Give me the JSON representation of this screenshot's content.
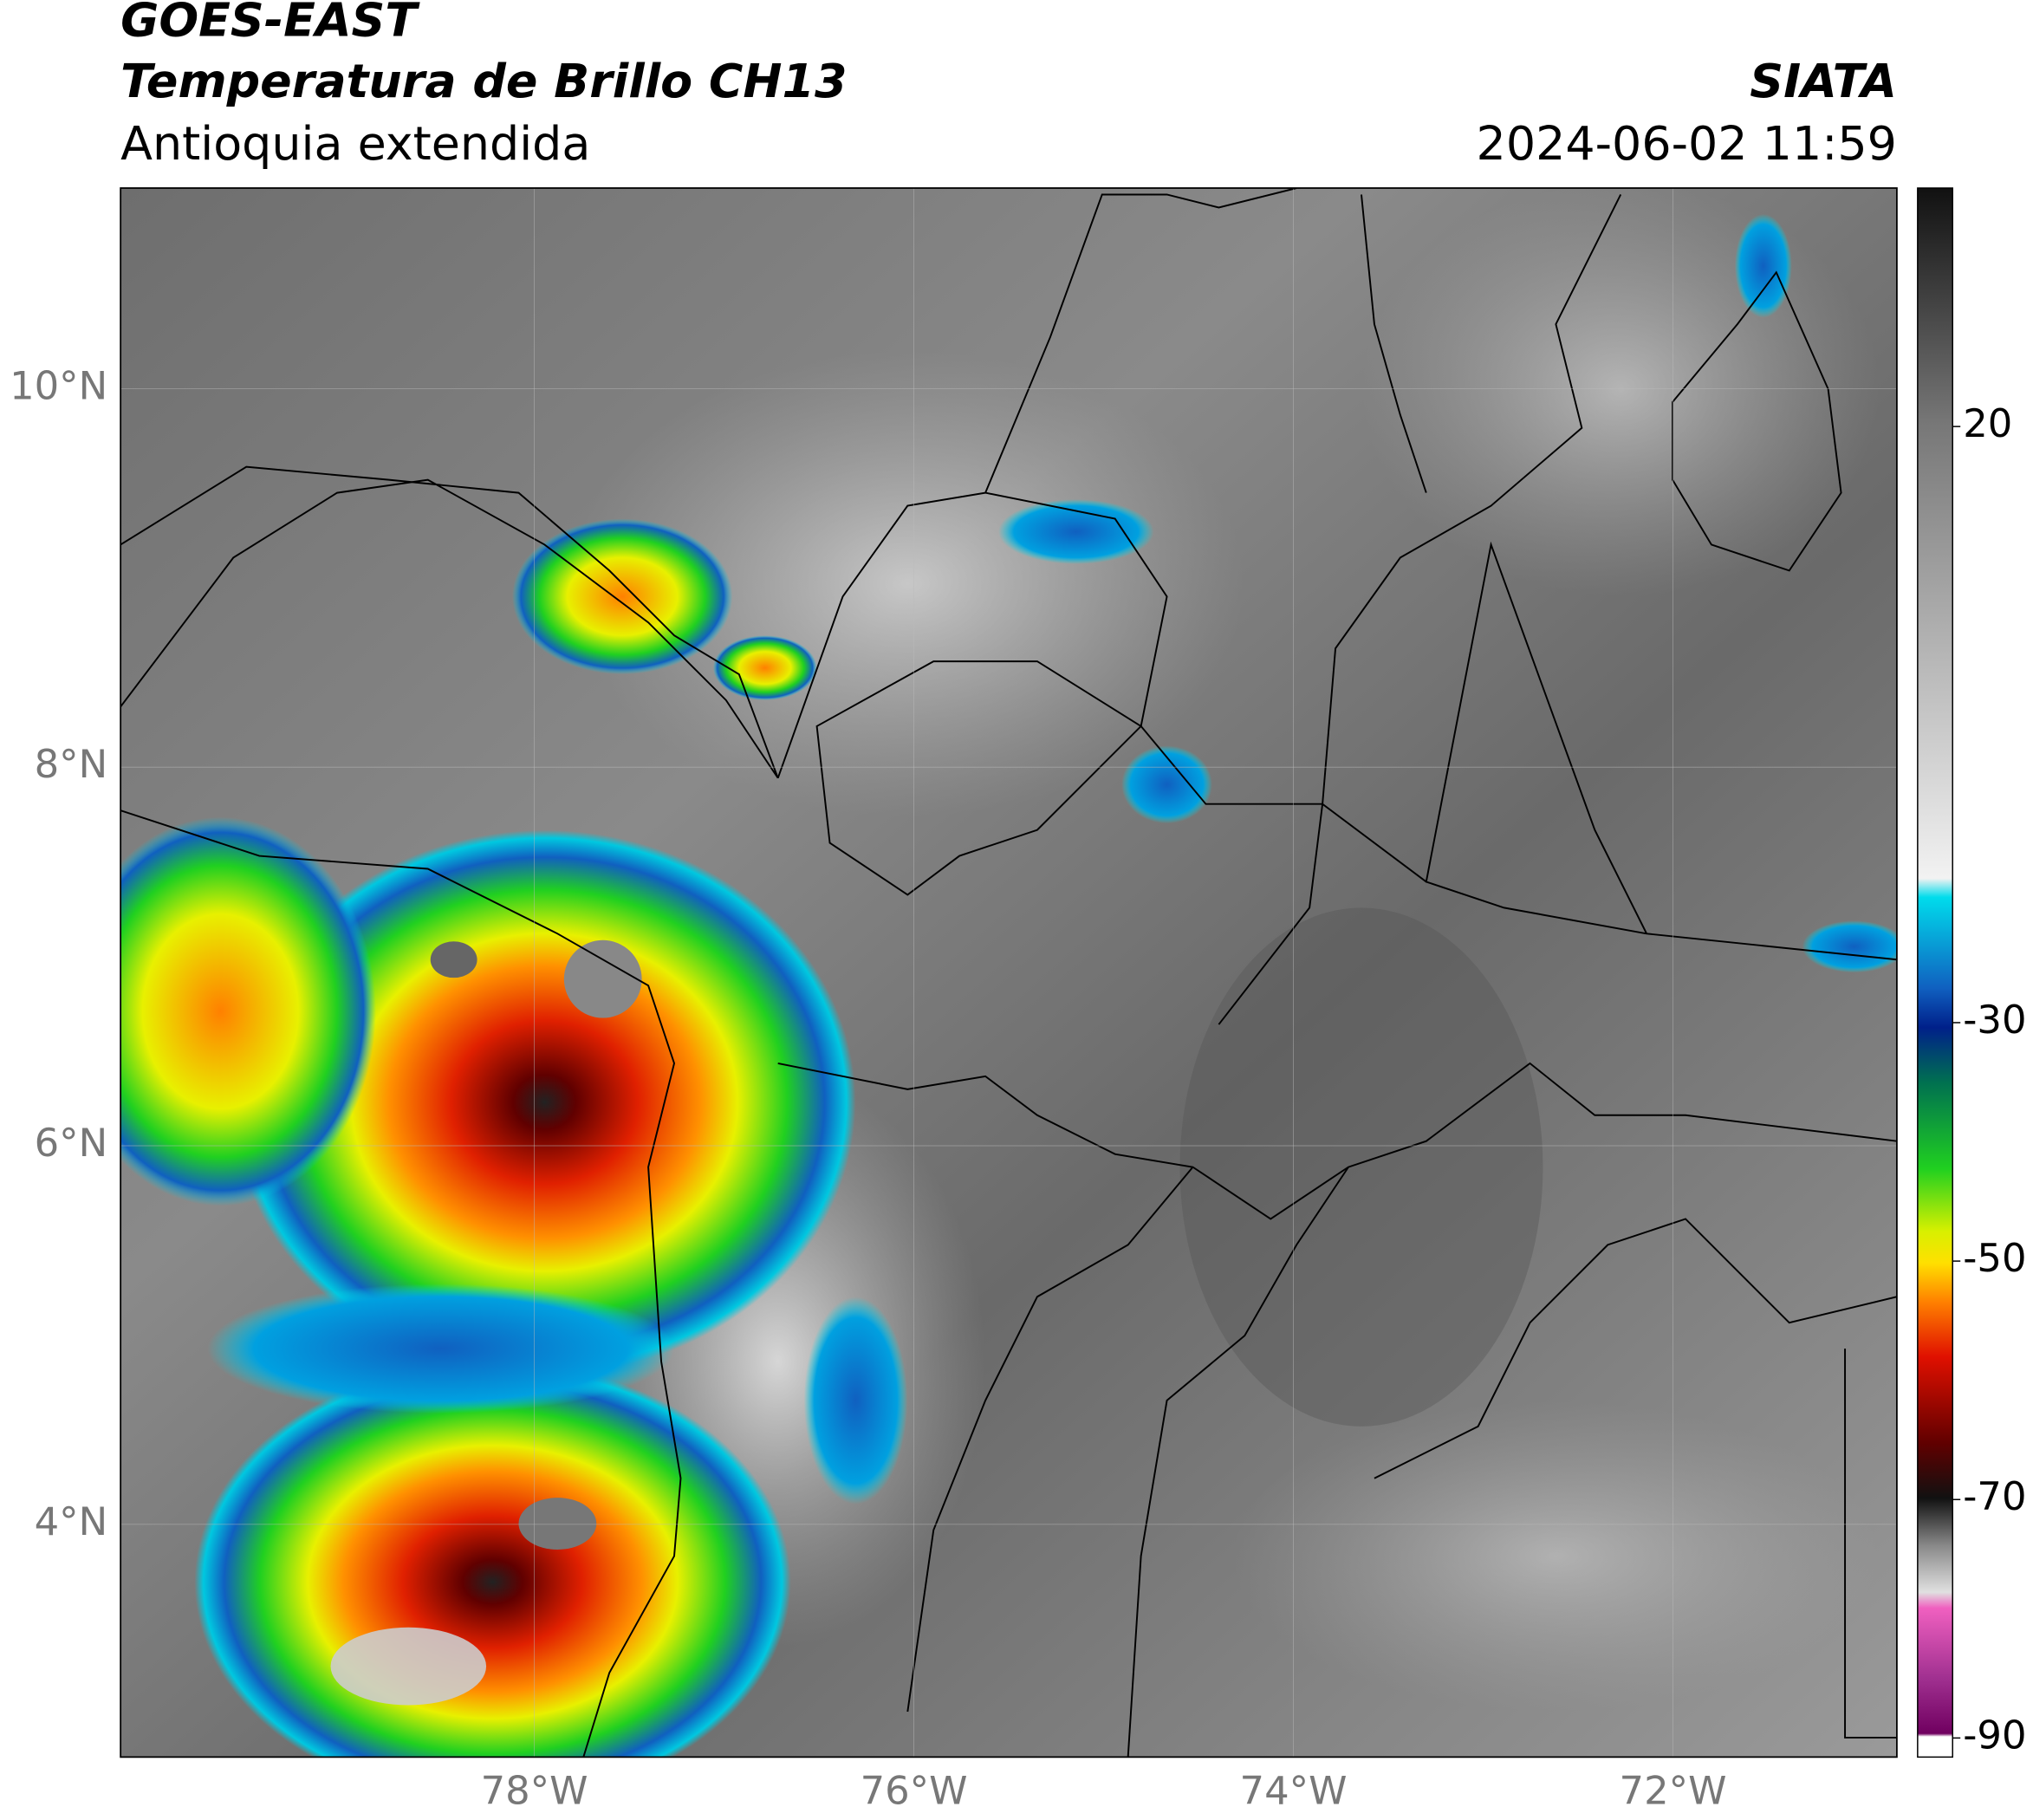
{
  "header": {
    "title": "GOES-EAST",
    "subtitle": "Temperatura de Brillo CH13",
    "region": "Antioquia extendida",
    "brand": "SIATA",
    "timestamp": "2024-06-02 11:59"
  },
  "map": {
    "xlim": [
      -80.18,
      -70.82
    ],
    "ylim": [
      2.77,
      11.06
    ],
    "xticks": [
      {
        "value": -78,
        "label": "78°W"
      },
      {
        "value": -76,
        "label": "76°W"
      },
      {
        "value": -74,
        "label": "74°W"
      },
      {
        "value": -72,
        "label": "72°W"
      }
    ],
    "yticks": [
      {
        "value": 10,
        "label": "10°N"
      },
      {
        "value": 8,
        "label": "8°N"
      },
      {
        "value": 6,
        "label": "6°N"
      },
      {
        "value": 4,
        "label": "4°N"
      }
    ],
    "grid": true
  },
  "colorbar": {
    "lim": [
      -91.6,
      40
    ],
    "ticks": [
      20,
      -30,
      -50,
      -70,
      -90
    ]
  }
}
